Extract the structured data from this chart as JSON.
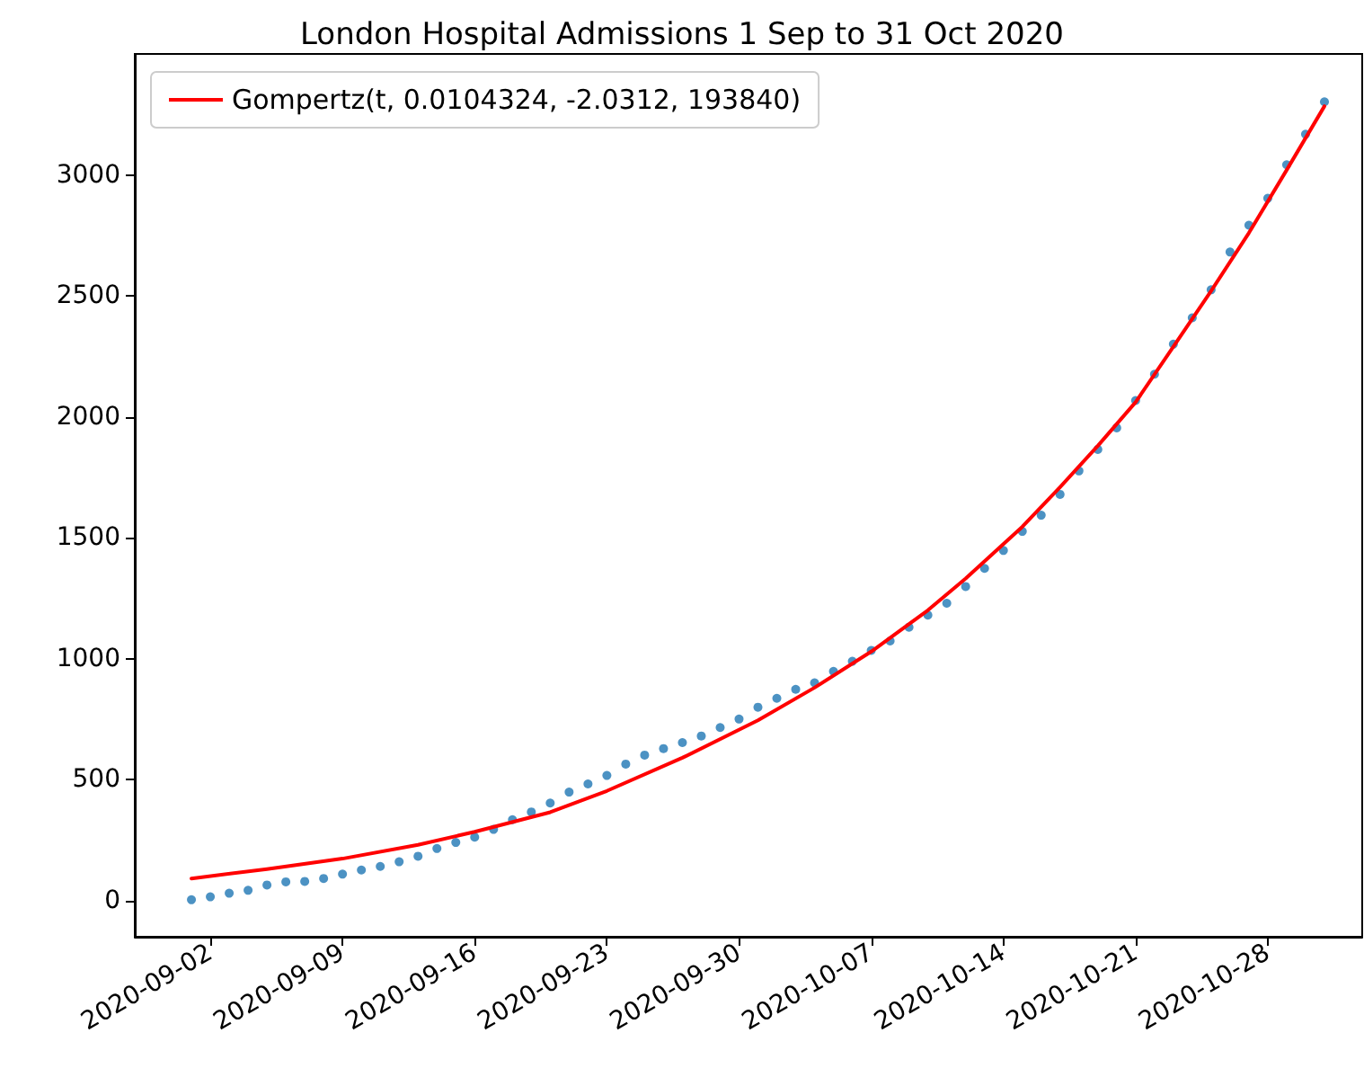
{
  "chart_data": {
    "type": "scatter",
    "title": "London Hospital Admissions 1 Sep to 31 Oct 2020",
    "xlim": [
      "2020-08-29",
      "2020-11-02"
    ],
    "xticks": [
      "2020-09-02",
      "2020-09-09",
      "2020-09-16",
      "2020-09-23",
      "2020-09-30",
      "2020-10-07",
      "2020-10-14",
      "2020-10-21",
      "2020-10-28"
    ],
    "ylim": [
      -150,
      3500
    ],
    "yticks": [
      0,
      500,
      1000,
      1500,
      2000,
      2500,
      3000
    ],
    "grid": false,
    "legend": "top left",
    "marker": "circle",
    "series": [
      {
        "color": "#1f77b4",
        "x": [
          "2020-09-01",
          "2020-09-02",
          "2020-09-03",
          "2020-09-04",
          "2020-09-05",
          "2020-09-06",
          "2020-09-07",
          "2020-09-08",
          "2020-09-09",
          "2020-09-10",
          "2020-09-11",
          "2020-09-12",
          "2020-09-13",
          "2020-09-14",
          "2020-09-15",
          "2020-09-16",
          "2020-09-17",
          "2020-09-18",
          "2020-09-19",
          "2020-09-20",
          "2020-09-21",
          "2020-09-22",
          "2020-09-23",
          "2020-09-24",
          "2020-09-25",
          "2020-09-26",
          "2020-09-27",
          "2020-09-28",
          "2020-09-29",
          "2020-09-30",
          "2020-10-01",
          "2020-10-02",
          "2020-10-03",
          "2020-10-04",
          "2020-10-05",
          "2020-10-06",
          "2020-10-07",
          "2020-10-08",
          "2020-10-09",
          "2020-10-10",
          "2020-10-11",
          "2020-10-12",
          "2020-10-13",
          "2020-10-14",
          "2020-10-15",
          "2020-10-16",
          "2020-10-17",
          "2020-10-18",
          "2020-10-19",
          "2020-10-20",
          "2020-10-21",
          "2020-10-22",
          "2020-10-23",
          "2020-10-24",
          "2020-10-25",
          "2020-10-26",
          "2020-10-27",
          "2020-10-28",
          "2020-10-29",
          "2020-10-30",
          "2020-10-31"
        ],
        "values": [
          3,
          15,
          30,
          42,
          64,
          77,
          79,
          91,
          109,
          126,
          141,
          160,
          183,
          215,
          240,
          262,
          294,
          334,
          366,
          403,
          448,
          482,
          517,
          564,
          601,
          628,
          653,
          680,
          715,
          750,
          799,
          836,
          873,
          900,
          947,
          989,
          1034,
          1073,
          1130,
          1180,
          1229,
          1298,
          1373,
          1447,
          1526,
          1593,
          1679,
          1776,
          1865,
          1954,
          2067,
          2176,
          2300,
          2409,
          2525,
          2681,
          2792,
          2903,
          3042,
          3168,
          3302
        ]
      },
      {
        "type": "line",
        "name": "Gompertz(t, 0.0104324, -2.0312, 193840)",
        "color": "#ff0000",
        "marker": "none",
        "line_style": "solid",
        "x": [
          "2020-09-01",
          "2020-09-05",
          "2020-09-09",
          "2020-09-13",
          "2020-09-16",
          "2020-09-20",
          "2020-09-23",
          "2020-09-27",
          "2020-10-01",
          "2020-10-04",
          "2020-10-07",
          "2020-10-10",
          "2020-10-12",
          "2020-10-15",
          "2020-10-17",
          "2020-10-19",
          "2020-10-21",
          "2020-10-23",
          "2020-10-25",
          "2020-10-27",
          "2020-10-29",
          "2020-10-31"
        ],
        "values": [
          91,
          130,
          173,
          230,
          284,
          365,
          453,
          590,
          745,
          880,
          1029,
          1200,
          1331,
          1545,
          1709,
          1880,
          2060,
          2290,
          2520,
          2760,
          3020,
          3284
        ]
      }
    ]
  }
}
